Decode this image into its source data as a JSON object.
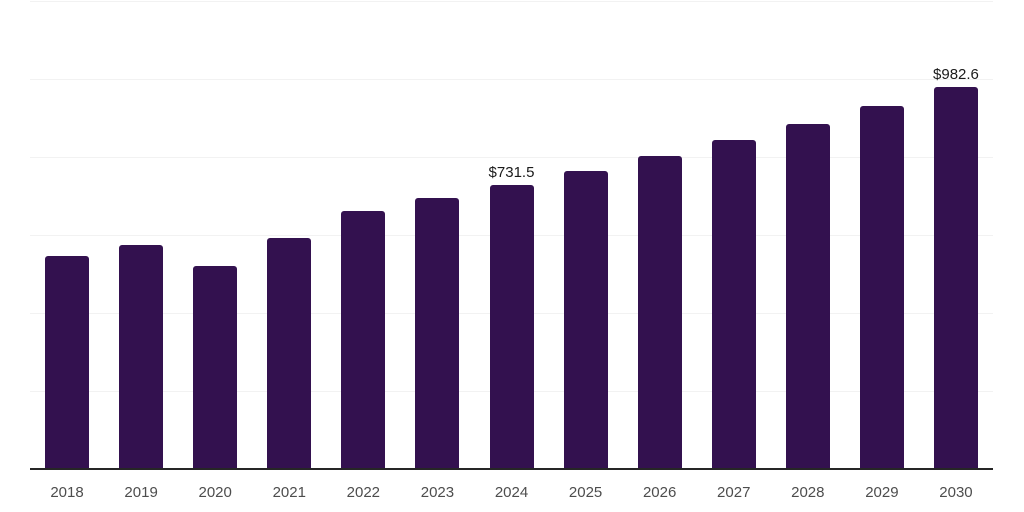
{
  "chart_data": {
    "type": "bar",
    "title": "",
    "xlabel": "",
    "ylabel": "",
    "categories": [
      "2018",
      "2019",
      "2020",
      "2021",
      "2022",
      "2023",
      "2024",
      "2025",
      "2026",
      "2027",
      "2028",
      "2029",
      "2030"
    ],
    "values": [
      549.8,
      576.5,
      524.3,
      595.4,
      663.0,
      697.5,
      731.5,
      767.5,
      805.5,
      846.5,
      888.5,
      934.5,
      982.6
    ],
    "labeled_points": [
      {
        "category": "2024",
        "label": "$731.5"
      },
      {
        "category": "2030",
        "label": "$982.6"
      }
    ],
    "value_prefix": "$",
    "ylim": [
      0,
      1200
    ],
    "grid": true,
    "grid_interval": 200,
    "legend": false,
    "colors": {
      "bar": "#33114f",
      "gridline": "#f2f2f2",
      "axis_line": "#262626",
      "tick_label": "#4d4d4d",
      "data_label": "#1a1a1a",
      "background": "#ffffff"
    }
  }
}
